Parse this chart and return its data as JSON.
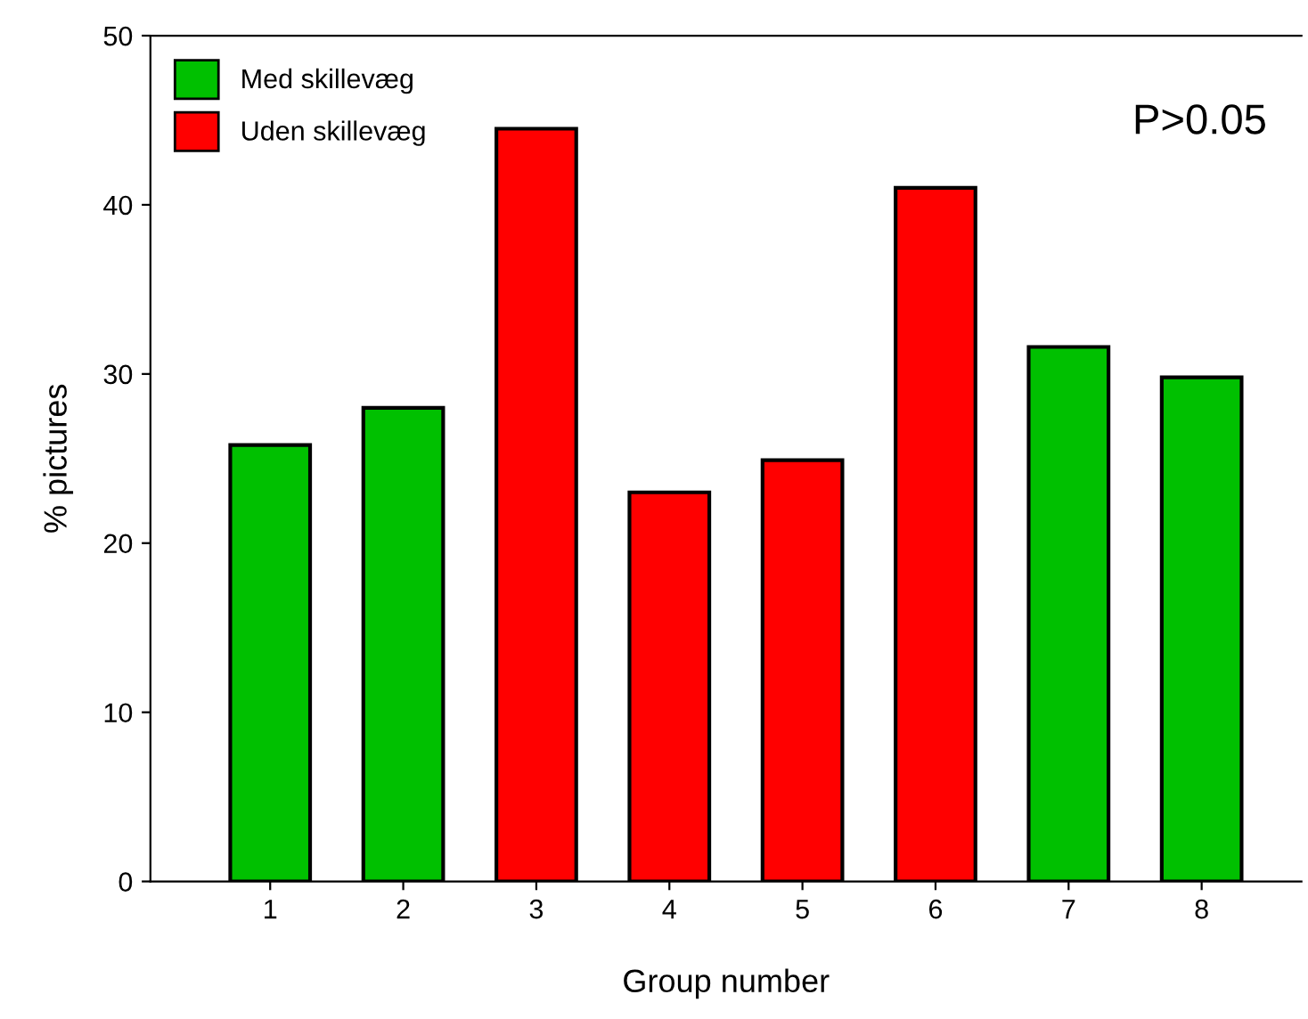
{
  "chart_data": {
    "type": "bar",
    "xlabel": "Group number",
    "ylabel": "% pictures",
    "categories": [
      "1",
      "2",
      "3",
      "4",
      "5",
      "6",
      "7",
      "8"
    ],
    "series": [
      {
        "name": "Med skillevæg",
        "color": "#00c000",
        "values": [
          25.8,
          28.0,
          null,
          null,
          null,
          null,
          31.6,
          29.8
        ]
      },
      {
        "name": "Uden skillevæg",
        "color": "#ff0000",
        "values": [
          null,
          null,
          44.5,
          23.0,
          24.9,
          41.0,
          null,
          null
        ]
      }
    ],
    "ylim": [
      0,
      50
    ],
    "yticks": [
      0,
      10,
      20,
      30,
      40,
      50
    ],
    "grid": false,
    "legend": "top left",
    "annotations": [
      "P>0.05"
    ]
  }
}
